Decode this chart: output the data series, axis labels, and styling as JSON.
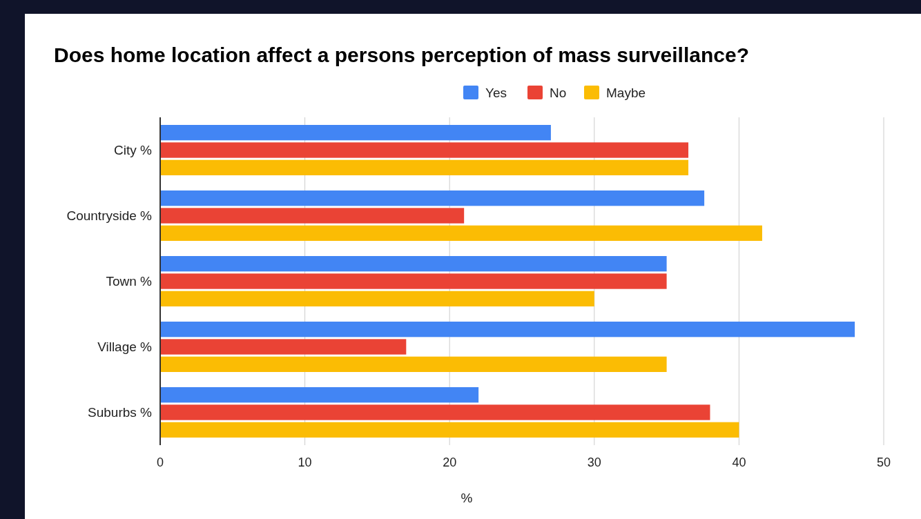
{
  "chart_data": {
    "type": "bar",
    "orientation": "horizontal",
    "title": "Does home location affect a persons perception of mass surveillance?",
    "xlabel": "%",
    "categories": [
      "City %",
      "Countryside %",
      "Town %",
      "Village %",
      "Suburbs %"
    ],
    "series": [
      {
        "name": "Yes",
        "color": "#4285f4",
        "values": [
          27,
          37.6,
          35,
          48,
          22
        ]
      },
      {
        "name": "No",
        "color": "#ea4335",
        "values": [
          36.5,
          21,
          35,
          17,
          38
        ]
      },
      {
        "name": "Maybe",
        "color": "#fbbc04",
        "values": [
          36.5,
          41.6,
          30,
          35,
          40
        ]
      }
    ],
    "xlim": [
      0,
      50
    ],
    "xticks": [
      0,
      10,
      20,
      30,
      40,
      50
    ],
    "grid": "x",
    "legend": "top"
  }
}
